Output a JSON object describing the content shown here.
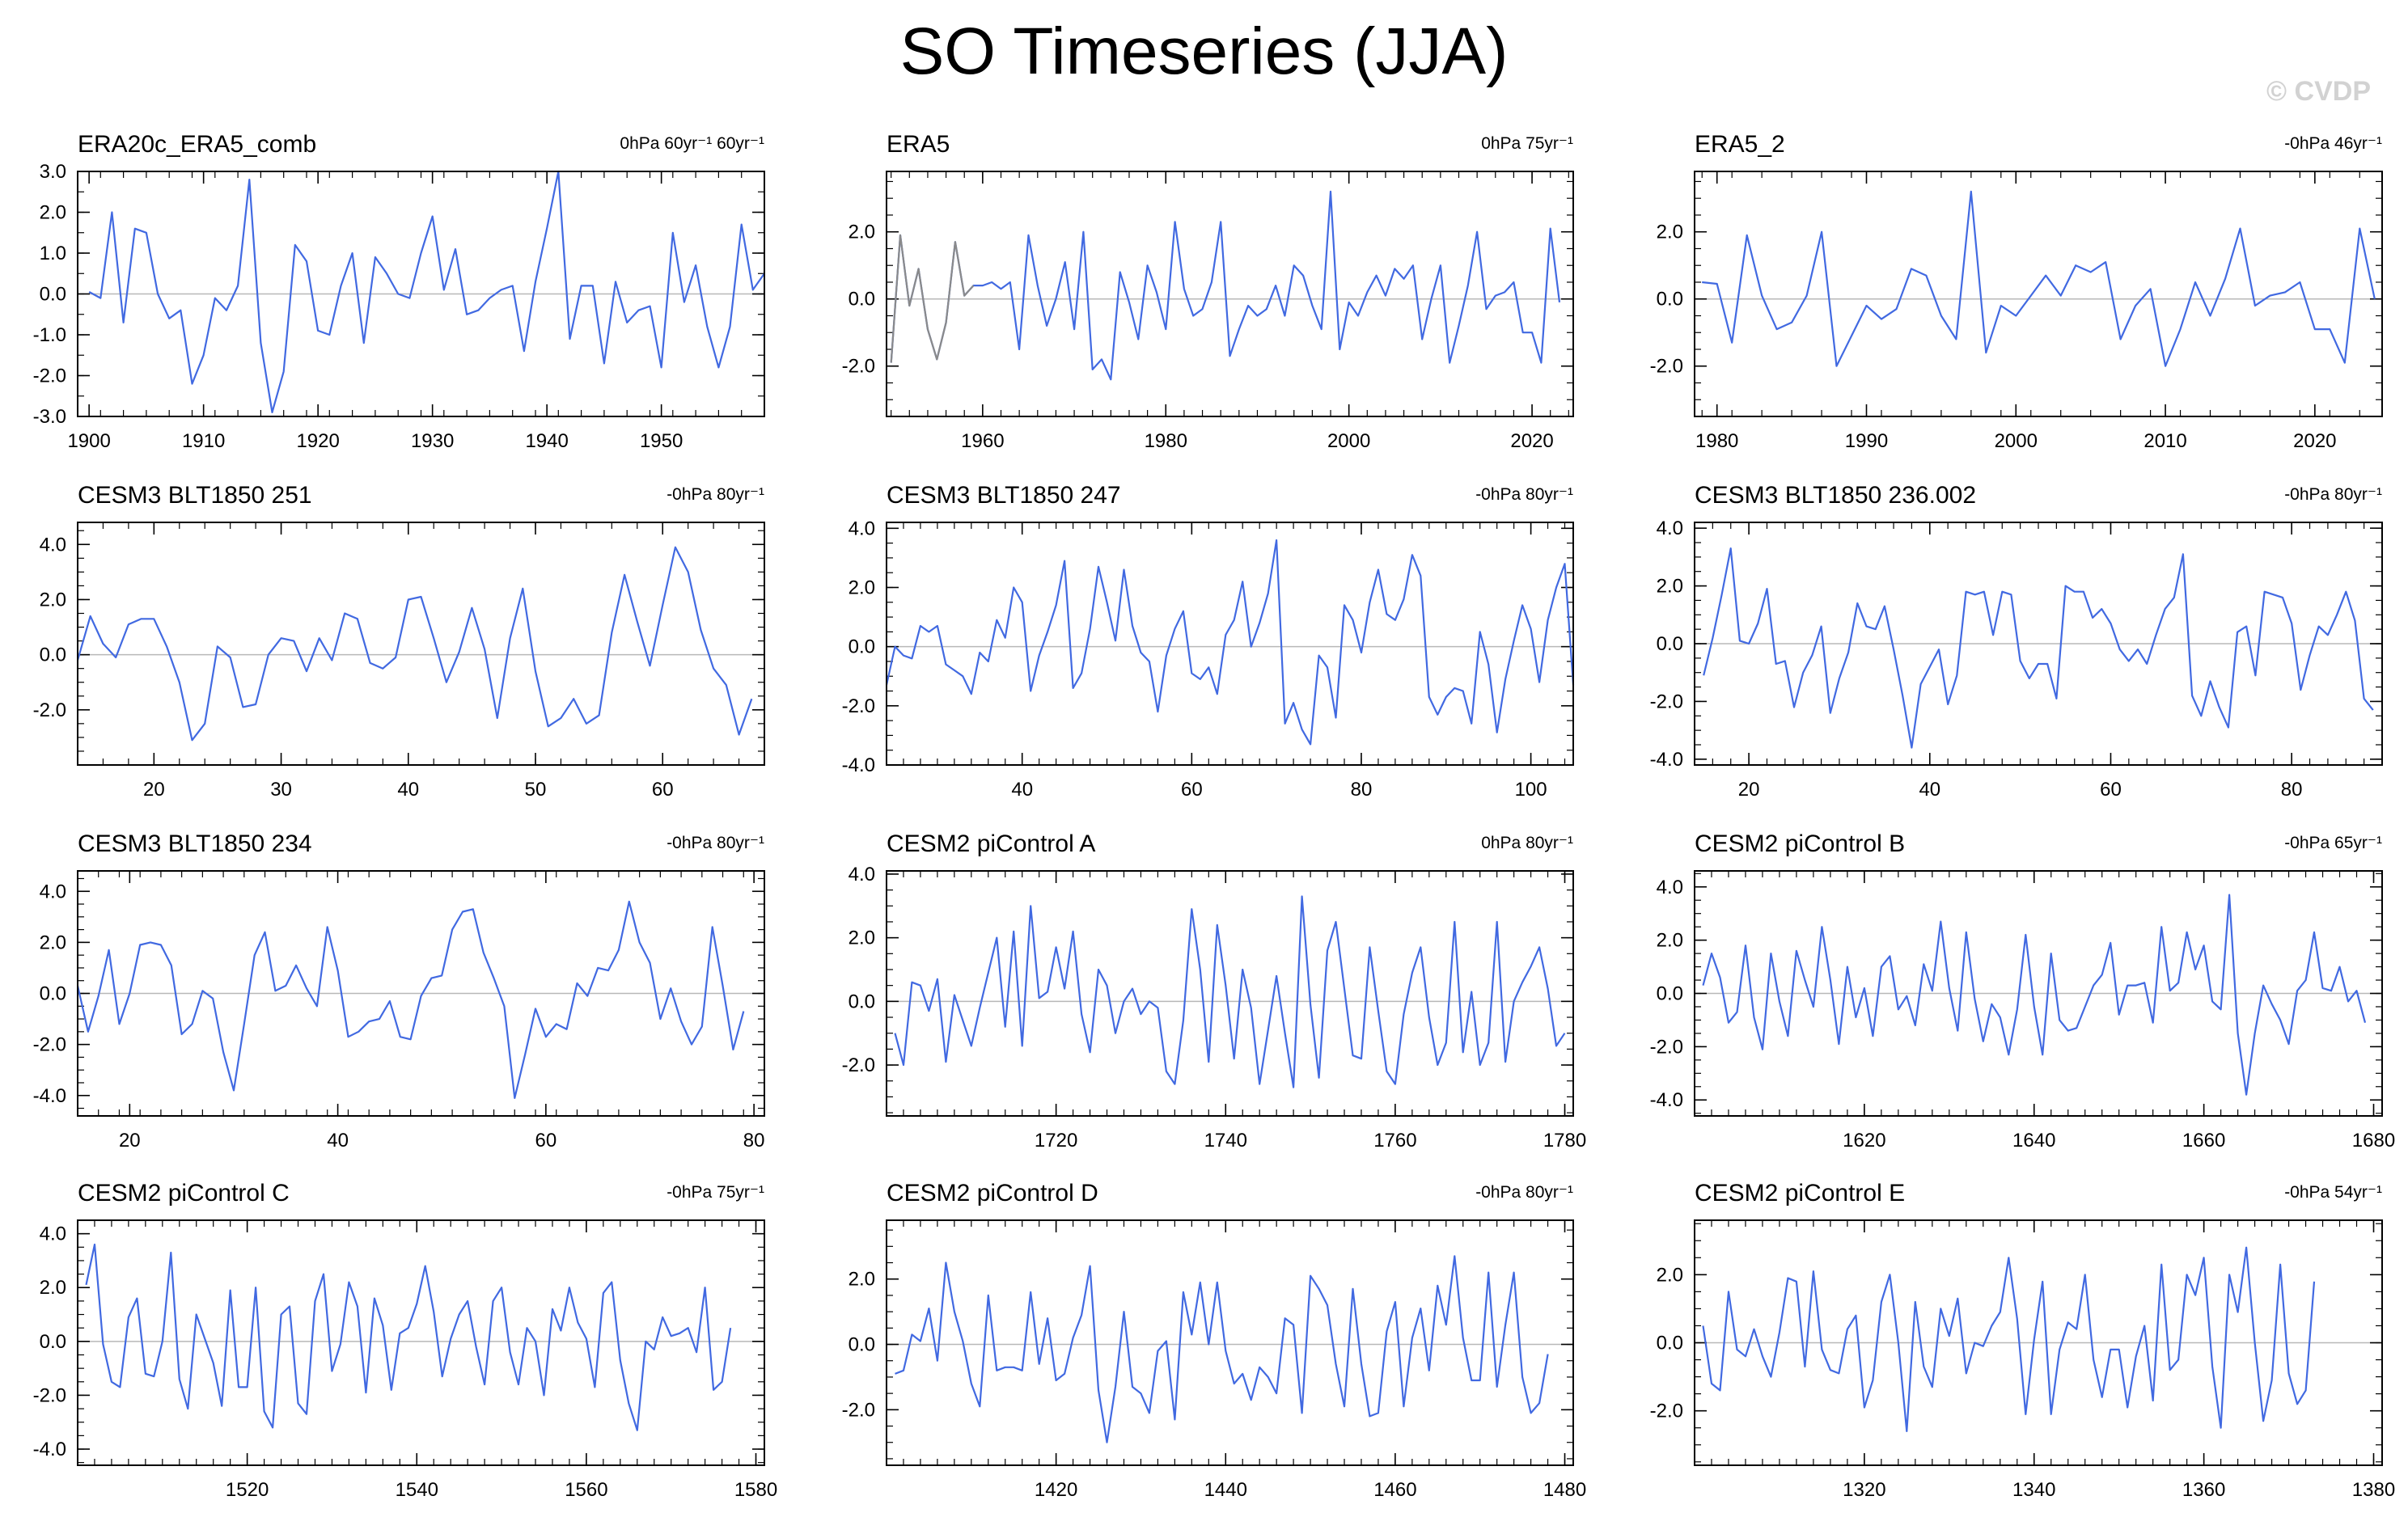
{
  "title": "SO Timeseries (JJA)",
  "copyright": "© CVDP",
  "colors": {
    "line": "#4169e1",
    "ref_line": "#b8b8b8",
    "overlay_line": "#8a8a8a",
    "frame": "#000000"
  },
  "chart_data": [
    {
      "type": "line",
      "title": "ERA20c_ERA5_comb",
      "right_label": "0hPa 60yr⁻¹ 60yr⁻¹",
      "xlim": [
        1899,
        1959
      ],
      "ylim": [
        -3,
        3
      ],
      "xticks": [
        1900,
        1910,
        1920,
        1930,
        1940,
        1950
      ],
      "yticks": [
        {
          "v": -3,
          "label": "-3.0"
        },
        {
          "v": -2,
          "label": "-2.0"
        },
        {
          "v": -1,
          "label": "-1.0"
        },
        {
          "v": 0,
          "label": "0.0"
        },
        {
          "v": 1,
          "label": "1.0"
        },
        {
          "v": 2,
          "label": "2.0"
        },
        {
          "v": 3,
          "label": "3.0"
        }
      ],
      "x_start": 1900,
      "values": [
        0.05,
        -0.1,
        2.0,
        -0.7,
        1.6,
        1.5,
        0.0,
        -0.6,
        -0.4,
        -2.2,
        -1.5,
        -0.1,
        -0.4,
        0.2,
        2.8,
        -1.2,
        -2.9,
        -1.9,
        1.2,
        0.8,
        -0.9,
        -1.0,
        0.2,
        1.0,
        -1.2,
        0.9,
        0.5,
        0.0,
        -0.1,
        1.0,
        1.9,
        0.1,
        1.1,
        -0.5,
        -0.4,
        -0.1,
        0.1,
        0.2,
        -1.4,
        0.3,
        1.6,
        3.0,
        -1.1,
        0.2,
        0.2,
        -1.7,
        0.3,
        -0.7,
        -0.4,
        -0.3,
        -1.8,
        1.5,
        -0.2,
        0.7,
        -0.8,
        -1.8,
        -0.8,
        1.7,
        0.1,
        0.5
      ]
    },
    {
      "type": "line",
      "title": "ERA5",
      "right_label": "0hPa 75yr⁻¹",
      "xlim": [
        1949.5,
        2024.5
      ],
      "ylim": [
        -3.5,
        3.8
      ],
      "xticks": [
        1960,
        1980,
        2000,
        2020
      ],
      "yticks": [
        {
          "v": -2,
          "label": "-2.0"
        },
        {
          "v": 0,
          "label": "0.0"
        },
        {
          "v": 2,
          "label": "2.0"
        }
      ],
      "x_start": 1950,
      "values": [
        -1.9,
        1.9,
        -0.2,
        0.9,
        -0.9,
        -1.8,
        -0.7,
        1.7,
        0.1,
        0.4,
        0.4,
        0.5,
        0.3,
        0.5,
        -1.5,
        1.9,
        0.4,
        -0.8,
        0.0,
        1.1,
        -0.9,
        2.0,
        -2.1,
        -1.8,
        -2.4,
        0.8,
        -0.1,
        -1.2,
        1.0,
        0.2,
        -0.9,
        2.3,
        0.3,
        -0.5,
        -0.3,
        0.5,
        2.3,
        -1.7,
        -0.9,
        -0.2,
        -0.5,
        -0.3,
        0.4,
        -0.5,
        1.0,
        0.7,
        -0.2,
        -0.9,
        3.2,
        -1.5,
        -0.1,
        -0.5,
        0.2,
        0.7,
        0.1,
        0.9,
        0.6,
        1.0,
        -1.2,
        0.0,
        1.0,
        -1.9,
        -0.8,
        0.4,
        2.0,
        -0.3,
        0.1,
        0.2,
        0.5,
        -1.0,
        -1.0,
        -1.9,
        2.1,
        -0.1
      ],
      "overlay": {
        "x_start": 1950,
        "values": [
          -1.9,
          1.9,
          -0.2,
          0.9,
          -0.9,
          -1.8,
          -0.7,
          1.7,
          0.1,
          0.4
        ]
      }
    },
    {
      "type": "line",
      "title": "ERA5_2",
      "right_label": "-0hPa 46yr⁻¹",
      "xlim": [
        1978.5,
        2024.5
      ],
      "ylim": [
        -3.5,
        3.8
      ],
      "xticks": [
        1980,
        1990,
        2000,
        2010,
        2020
      ],
      "yticks": [
        {
          "v": -2,
          "label": "-2.0"
        },
        {
          "v": 0,
          "label": "0.0"
        },
        {
          "v": 2,
          "label": "2.0"
        }
      ],
      "x_start": 1979,
      "values": [
        0.5,
        0.45,
        -1.3,
        1.9,
        0.1,
        -0.9,
        -0.7,
        0.1,
        2.0,
        -2.0,
        -1.1,
        -0.2,
        -0.6,
        -0.3,
        0.9,
        0.7,
        -0.5,
        -1.2,
        3.2,
        -1.6,
        -0.2,
        -0.5,
        0.1,
        0.7,
        0.1,
        1.0,
        0.8,
        1.1,
        -1.2,
        -0.2,
        0.3,
        -2.0,
        -0.9,
        0.5,
        -0.5,
        0.6,
        2.1,
        -0.2,
        0.1,
        0.2,
        0.5,
        -0.9,
        -0.9,
        -1.9,
        2.1,
        0.0
      ]
    },
    {
      "type": "line",
      "title": "CESM3 BLT1850 251",
      "right_label": "-0hPa 80yr⁻¹",
      "xlim": [
        14,
        68
      ],
      "ylim": [
        -4,
        4.8
      ],
      "xticks": [
        20,
        30,
        40,
        50,
        60
      ],
      "yticks": [
        {
          "v": -2,
          "label": "-2.0"
        },
        {
          "v": 0,
          "label": "0.0"
        },
        {
          "v": 2,
          "label": "2.0"
        },
        {
          "v": 4,
          "label": "4.0"
        }
      ],
      "x_start": 14,
      "values": [
        -0.2,
        1.4,
        0.4,
        -0.1,
        1.1,
        1.3,
        1.3,
        0.3,
        -1.0,
        -3.1,
        -2.5,
        0.3,
        -0.1,
        -1.9,
        -1.8,
        0.0,
        0.6,
        0.5,
        -0.6,
        0.6,
        -0.2,
        1.5,
        1.3,
        -0.3,
        -0.5,
        -0.1,
        2.0,
        2.1,
        0.6,
        -1.0,
        0.1,
        1.7,
        0.2,
        -2.3,
        0.6,
        2.4,
        -0.6,
        -2.6,
        -2.3,
        -1.6,
        -2.5,
        -2.2,
        0.8,
        2.9,
        1.2,
        -0.4,
        1.8,
        3.9,
        3.0,
        0.9,
        -0.5,
        -1.1,
        -2.9,
        -1.6
      ]
    },
    {
      "type": "line",
      "title": "CESM3 BLT1850 247",
      "right_label": "-0hPa 80yr⁻¹",
      "xlim": [
        24,
        105
      ],
      "ylim": [
        -4,
        4.2
      ],
      "xticks": [
        40,
        60,
        80,
        100
      ],
      "yticks": [
        {
          "v": -4,
          "label": "-4.0"
        },
        {
          "v": -2,
          "label": "-2.0"
        },
        {
          "v": 0,
          "label": "0.0"
        },
        {
          "v": 2,
          "label": "2.0"
        },
        {
          "v": 4,
          "label": "4.0"
        }
      ],
      "x_start": 24,
      "values": [
        -1.3,
        0.0,
        -0.3,
        -0.4,
        0.7,
        0.5,
        0.7,
        -0.6,
        -0.8,
        -1.0,
        -1.6,
        -0.2,
        -0.5,
        0.9,
        0.3,
        2.0,
        1.5,
        -1.5,
        -0.3,
        0.5,
        1.4,
        2.9,
        -1.4,
        -0.9,
        0.6,
        2.7,
        1.5,
        0.2,
        2.6,
        0.7,
        -0.2,
        -0.5,
        -2.2,
        -0.3,
        0.6,
        1.2,
        -0.9,
        -1.1,
        -0.7,
        -1.6,
        0.4,
        0.9,
        2.2,
        0.0,
        0.8,
        1.8,
        3.6,
        -2.6,
        -1.9,
        -2.8,
        -3.3,
        -0.3,
        -0.7,
        -2.4,
        1.4,
        0.9,
        -0.2,
        1.5,
        2.6,
        1.1,
        0.9,
        1.6,
        3.1,
        2.4,
        -1.7,
        -2.3,
        -1.7,
        -1.4,
        -1.5,
        -2.6,
        0.5,
        -0.6,
        -2.9,
        -1.1,
        0.2,
        1.4,
        0.6,
        -1.2,
        0.9,
        2.0,
        2.8,
        -1.3
      ]
    },
    {
      "type": "line",
      "title": "CESM3 BLT1850 236.002",
      "right_label": "-0hPa 80yr⁻¹",
      "xlim": [
        14,
        90
      ],
      "ylim": [
        -4.2,
        4.2
      ],
      "xticks": [
        20,
        40,
        60,
        80
      ],
      "yticks": [
        {
          "v": -4,
          "label": "-4.0"
        },
        {
          "v": -2,
          "label": "-2.0"
        },
        {
          "v": 0,
          "label": "0.0"
        },
        {
          "v": 2,
          "label": "2.0"
        },
        {
          "v": 4,
          "label": "4.0"
        }
      ],
      "x_start": 15,
      "values": [
        -1.1,
        0.2,
        1.7,
        3.3,
        0.1,
        0.0,
        0.7,
        1.9,
        -0.7,
        -0.6,
        -2.2,
        -1.0,
        -0.4,
        0.6,
        -2.4,
        -1.2,
        -0.3,
        1.4,
        0.6,
        0.5,
        1.3,
        -0.2,
        -1.8,
        -3.6,
        -1.4,
        -0.8,
        -0.2,
        -2.1,
        -1.1,
        1.8,
        1.7,
        1.8,
        0.3,
        1.8,
        1.7,
        -0.6,
        -1.2,
        -0.7,
        -0.7,
        -1.9,
        2.0,
        1.8,
        1.8,
        0.9,
        1.2,
        0.7,
        -0.2,
        -0.6,
        -0.2,
        -0.7,
        0.3,
        1.2,
        1.6,
        3.1,
        -1.8,
        -2.5,
        -1.3,
        -2.2,
        -2.9,
        0.4,
        0.6,
        -1.1,
        1.8,
        1.7,
        1.6,
        0.7,
        -1.6,
        -0.4,
        0.6,
        0.3,
        1.0,
        1.8,
        0.8,
        -1.9,
        -2.3
      ]
    },
    {
      "type": "line",
      "title": "CESM3 BLT1850 234",
      "right_label": "-0hPa 80yr⁻¹",
      "xlim": [
        15,
        81
      ],
      "ylim": [
        -4.8,
        4.8
      ],
      "xticks": [
        20,
        40,
        60,
        80
      ],
      "yticks": [
        {
          "v": -4,
          "label": "-4.0"
        },
        {
          "v": -2,
          "label": "-2.0"
        },
        {
          "v": 0,
          "label": "0.0"
        },
        {
          "v": 2,
          "label": "2.0"
        },
        {
          "v": 4,
          "label": "4.0"
        }
      ],
      "x_start": 15,
      "values": [
        0.3,
        -1.5,
        -0.1,
        1.7,
        -1.2,
        0.0,
        1.9,
        2.0,
        1.9,
        1.1,
        -1.6,
        -1.2,
        0.1,
        -0.2,
        -2.3,
        -3.8,
        -1.2,
        1.5,
        2.4,
        0.1,
        0.3,
        1.1,
        0.2,
        -0.5,
        2.6,
        0.9,
        -1.7,
        -1.5,
        -1.1,
        -1.0,
        -0.3,
        -1.7,
        -1.8,
        -0.1,
        0.6,
        0.7,
        2.5,
        3.2,
        3.3,
        1.6,
        0.6,
        -0.5,
        -4.1,
        -2.4,
        -0.6,
        -1.7,
        -1.2,
        -1.4,
        0.4,
        -0.1,
        1.0,
        0.9,
        1.7,
        3.6,
        2.0,
        1.2,
        -1.0,
        0.2,
        -1.1,
        -2.0,
        -1.3,
        2.6,
        0.3,
        -2.2,
        -0.7
      ]
    },
    {
      "type": "line",
      "title": "CESM2 piControl A",
      "right_label": "0hPa 80yr⁻¹",
      "xlim": [
        1700,
        1781
      ],
      "ylim": [
        -3.6,
        4.1
      ],
      "xticks": [
        1720,
        1740,
        1760,
        1780
      ],
      "yticks": [
        {
          "v": -2,
          "label": "-2.0"
        },
        {
          "v": 0,
          "label": "0.0"
        },
        {
          "v": 2,
          "label": "2.0"
        },
        {
          "v": 4,
          "label": "4.0"
        }
      ],
      "x_start": 1701,
      "values": [
        -1.0,
        -2.0,
        0.6,
        0.5,
        -0.3,
        0.7,
        -1.9,
        0.2,
        -0.6,
        -1.4,
        -0.2,
        0.9,
        2.0,
        -0.8,
        2.2,
        -1.4,
        3.0,
        0.1,
        0.3,
        1.7,
        0.4,
        2.2,
        -0.4,
        -1.6,
        1.0,
        0.5,
        -1.0,
        0.0,
        0.4,
        -0.4,
        0.0,
        -0.2,
        -2.2,
        -2.6,
        -0.6,
        2.9,
        1.0,
        -1.9,
        2.4,
        0.5,
        -1.8,
        1.0,
        -0.2,
        -2.6,
        -0.9,
        0.8,
        -1.0,
        -2.7,
        3.3,
        -0.1,
        -2.4,
        1.6,
        2.5,
        0.4,
        -1.7,
        -1.8,
        1.7,
        -0.3,
        -2.2,
        -2.6,
        -0.4,
        0.9,
        1.7,
        -0.5,
        -2.0,
        -1.3,
        2.5,
        -1.6,
        0.3,
        -2.0,
        -1.3,
        2.5,
        -1.9,
        0.0,
        0.6,
        1.1,
        1.7,
        0.4,
        -1.4,
        -1.0
      ]
    },
    {
      "type": "line",
      "title": "CESM2 piControl B",
      "right_label": "-0hPa 65yr⁻¹",
      "xlim": [
        1600,
        1681
      ],
      "ylim": [
        -4.6,
        4.6
      ],
      "xticks": [
        1620,
        1640,
        1660,
        1680
      ],
      "yticks": [
        {
          "v": -4,
          "label": "-4.0"
        },
        {
          "v": -2,
          "label": "-2.0"
        },
        {
          "v": 0,
          "label": "0.0"
        },
        {
          "v": 2,
          "label": "2.0"
        },
        {
          "v": 4,
          "label": "4.0"
        }
      ],
      "x_start": 1601,
      "values": [
        0.3,
        1.5,
        0.6,
        -1.1,
        -0.7,
        1.8,
        -0.9,
        -2.1,
        1.5,
        -0.3,
        -1.6,
        1.6,
        0.5,
        -0.5,
        2.5,
        0.5,
        -1.9,
        1.0,
        -0.9,
        0.2,
        -1.6,
        1.0,
        1.4,
        -0.6,
        -0.1,
        -1.2,
        1.1,
        0.1,
        2.7,
        0.2,
        -1.4,
        2.3,
        -0.2,
        -1.8,
        -0.4,
        -0.9,
        -2.3,
        -0.6,
        2.2,
        -0.5,
        -2.3,
        1.5,
        -1.0,
        -1.4,
        -1.3,
        -0.5,
        0.3,
        0.7,
        1.9,
        -0.8,
        0.3,
        0.3,
        0.4,
        -1.1,
        2.5,
        0.1,
        0.4,
        2.3,
        0.9,
        1.8,
        -0.3,
        -0.6,
        3.7,
        -1.5,
        -3.8,
        -1.5,
        0.3,
        -0.4,
        -1.0,
        -1.9,
        0.1,
        0.5,
        2.3,
        0.2,
        0.1,
        1.0,
        -0.3,
        0.1,
        -1.1
      ]
    },
    {
      "type": "line",
      "title": "CESM2 piControl C",
      "right_label": "-0hPa 75yr⁻¹",
      "xlim": [
        1500,
        1581
      ],
      "ylim": [
        -4.6,
        4.5
      ],
      "xticks": [
        1520,
        1540,
        1560,
        1580
      ],
      "yticks": [
        {
          "v": -4,
          "label": "-4.0"
        },
        {
          "v": -2,
          "label": "-2.0"
        },
        {
          "v": 0,
          "label": "0.0"
        },
        {
          "v": 2,
          "label": "2.0"
        },
        {
          "v": 4,
          "label": "4.0"
        }
      ],
      "x_start": 1501,
      "values": [
        2.1,
        3.6,
        -0.1,
        -1.5,
        -1.7,
        0.9,
        1.6,
        -1.2,
        -1.3,
        0.0,
        3.3,
        -1.4,
        -2.5,
        1.0,
        0.1,
        -0.8,
        -2.4,
        1.9,
        -1.7,
        -1.7,
        2.0,
        -2.6,
        -3.2,
        1.0,
        1.3,
        -2.3,
        -2.7,
        1.5,
        2.5,
        -1.1,
        -0.1,
        2.2,
        1.3,
        -1.9,
        1.6,
        0.6,
        -1.8,
        0.3,
        0.5,
        1.4,
        2.8,
        1.1,
        -1.3,
        0.1,
        1.0,
        1.5,
        -0.2,
        -1.6,
        1.5,
        2.0,
        -0.4,
        -1.6,
        0.5,
        0.0,
        -2.0,
        1.2,
        0.4,
        2.0,
        0.7,
        0.1,
        -1.7,
        1.8,
        2.2,
        -0.7,
        -2.3,
        -3.3,
        0.0,
        -0.3,
        0.9,
        0.2,
        0.3,
        0.5,
        -0.4,
        2.0,
        -1.8,
        -1.5,
        0.5
      ]
    },
    {
      "type": "line",
      "title": "CESM2 piControl D",
      "right_label": "-0hPa 80yr⁻¹",
      "xlim": [
        1400,
        1481
      ],
      "ylim": [
        -3.7,
        3.8
      ],
      "xticks": [
        1420,
        1440,
        1460,
        1480
      ],
      "yticks": [
        {
          "v": -2,
          "label": "-2.0"
        },
        {
          "v": 0,
          "label": "0.0"
        },
        {
          "v": 2,
          "label": "2.0"
        }
      ],
      "x_start": 1401,
      "values": [
        -0.9,
        -0.8,
        0.3,
        0.1,
        1.1,
        -0.5,
        2.5,
        1.0,
        0.1,
        -1.2,
        -1.9,
        1.5,
        -0.8,
        -0.7,
        -0.7,
        -0.8,
        1.6,
        -0.6,
        0.8,
        -1.1,
        -0.9,
        0.2,
        0.9,
        2.4,
        -1.4,
        -3.0,
        -1.3,
        1.0,
        -1.3,
        -1.5,
        -2.1,
        -0.2,
        0.1,
        -2.3,
        1.6,
        0.3,
        1.9,
        0.0,
        1.9,
        -0.2,
        -1.2,
        -0.9,
        -1.7,
        -0.7,
        -1.0,
        -1.5,
        0.8,
        0.6,
        -2.1,
        2.1,
        1.7,
        1.2,
        -0.6,
        -1.9,
        1.7,
        -0.6,
        -2.2,
        -2.1,
        0.4,
        1.3,
        -1.9,
        0.2,
        1.1,
        -0.8,
        1.8,
        0.6,
        2.7,
        0.2,
        -1.1,
        -1.1,
        2.2,
        -1.3,
        0.6,
        2.2,
        -1.0,
        -2.1,
        -1.8,
        -0.3
      ]
    },
    {
      "type": "line",
      "title": "CESM2 piControl E",
      "right_label": "-0hPa 54yr⁻¹",
      "xlim": [
        1300,
        1381
      ],
      "ylim": [
        -3.6,
        3.6
      ],
      "xticks": [
        1320,
        1340,
        1360,
        1380
      ],
      "yticks": [
        {
          "v": -2,
          "label": "-2.0"
        },
        {
          "v": 0,
          "label": "0.0"
        },
        {
          "v": 2,
          "label": "2.0"
        }
      ],
      "x_start": 1301,
      "values": [
        0.5,
        -1.2,
        -1.4,
        1.5,
        -0.2,
        -0.4,
        0.4,
        -0.4,
        -1.0,
        0.3,
        1.9,
        1.8,
        -0.7,
        2.1,
        -0.2,
        -0.8,
        -0.9,
        0.4,
        0.8,
        -1.9,
        -1.1,
        1.2,
        2.0,
        0.0,
        -2.6,
        1.2,
        -0.7,
        -1.3,
        1.0,
        0.2,
        1.3,
        -0.9,
        0.0,
        -0.1,
        0.5,
        0.9,
        2.5,
        0.7,
        -2.1,
        0.1,
        1.8,
        -2.1,
        -0.2,
        0.6,
        0.4,
        2.0,
        -0.5,
        -1.6,
        -0.2,
        -0.2,
        -1.9,
        -0.4,
        0.5,
        -1.7,
        2.3,
        -0.8,
        -0.5,
        2.0,
        1.4,
        2.5,
        -0.7,
        -2.5,
        2.0,
        0.9,
        2.8,
        0.0,
        -2.3,
        -1.1,
        2.3,
        -0.9,
        -1.8,
        -1.4,
        1.8
      ]
    }
  ]
}
